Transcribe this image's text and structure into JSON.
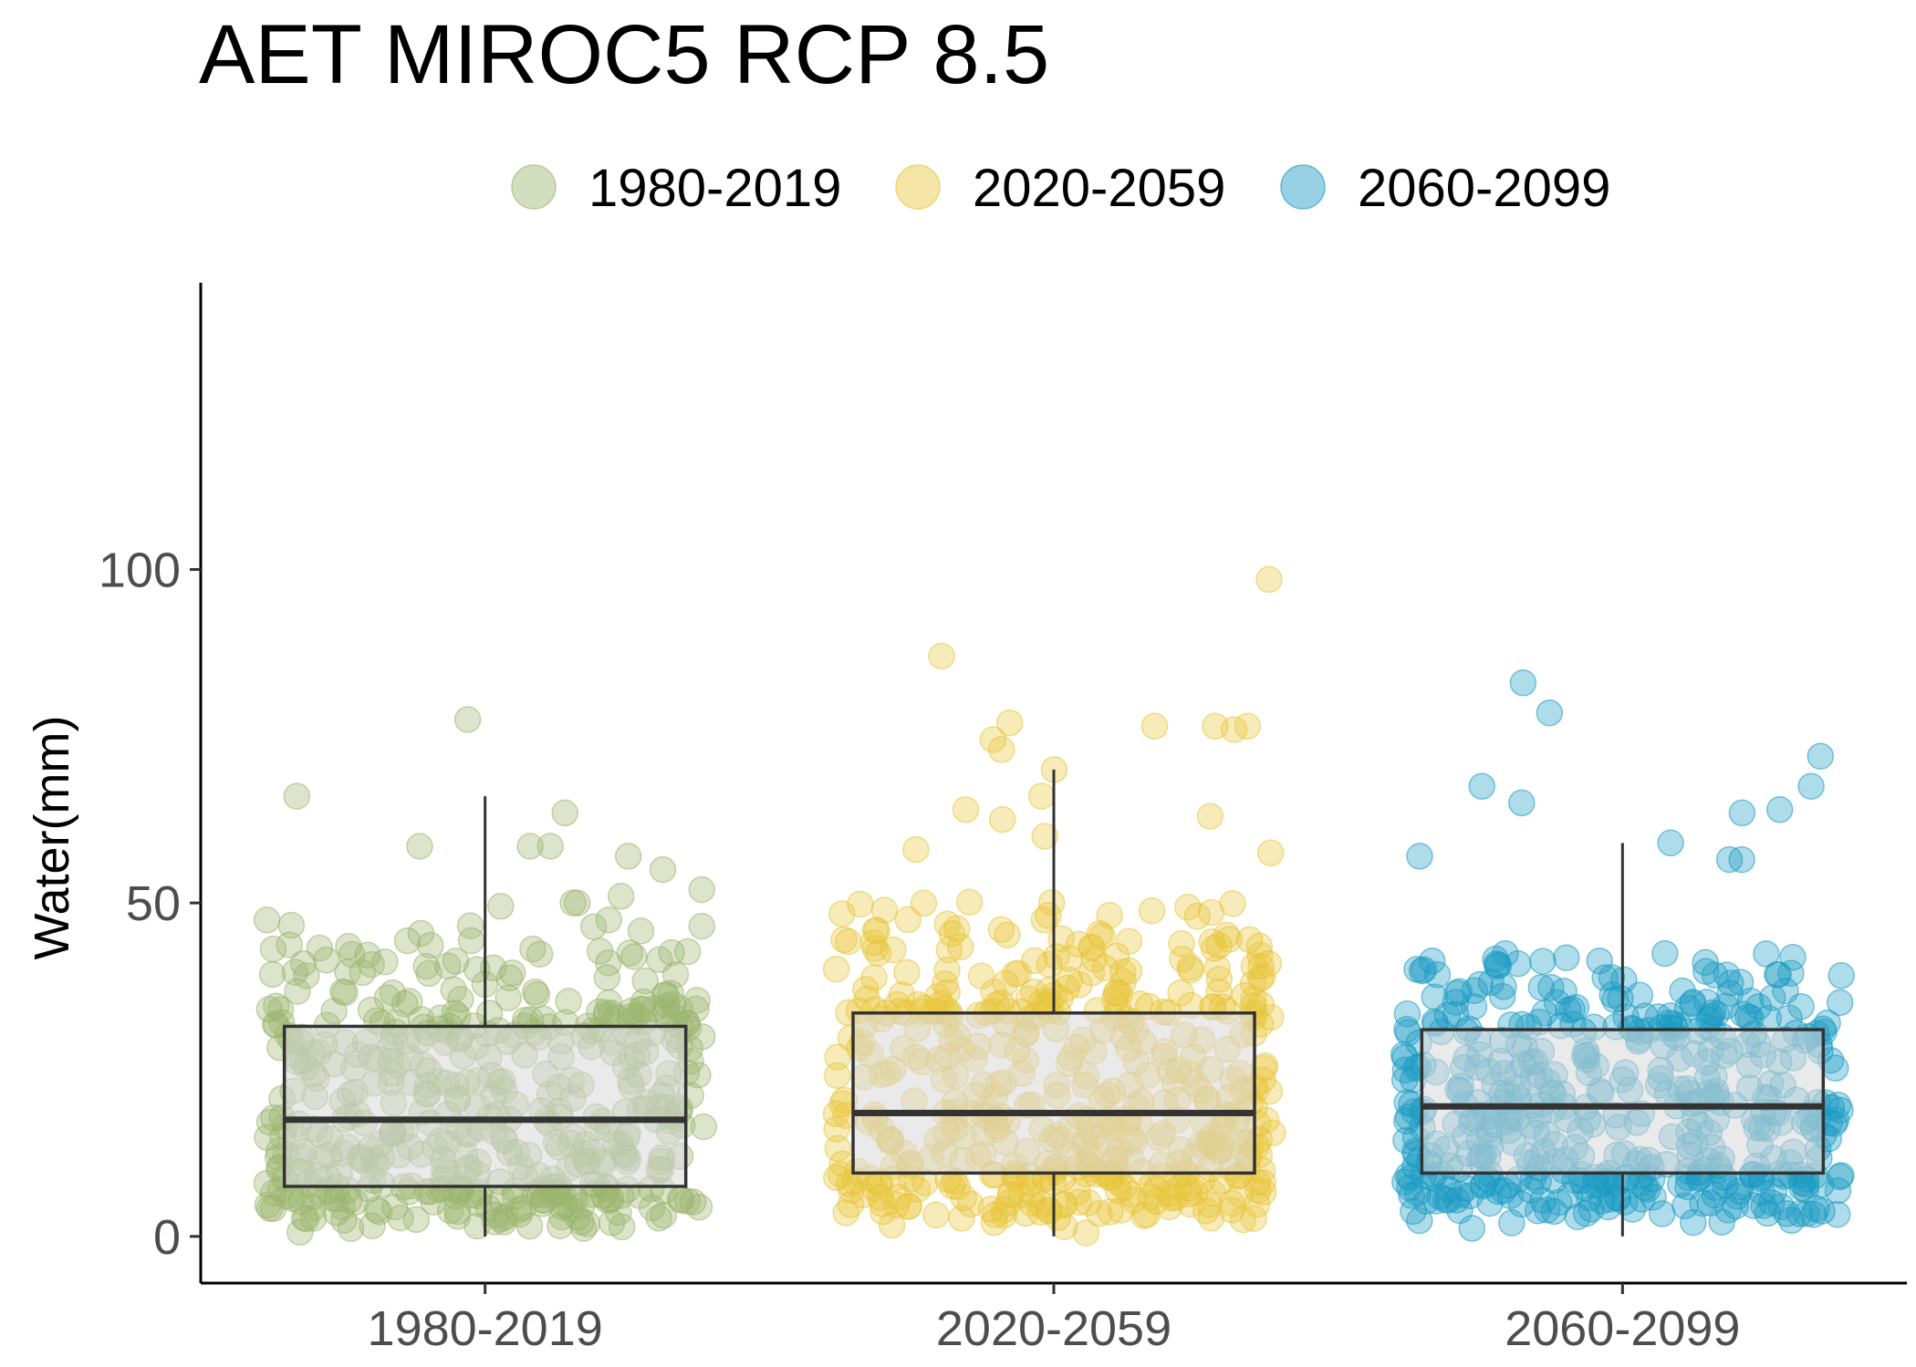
{
  "chart_data": {
    "type": "box",
    "title": "AET MIROC5 RCP 8.5",
    "xlabel": "",
    "ylabel": "Water(mm)",
    "ylim": [
      -7,
      143
    ],
    "yticks": [
      0,
      50,
      100
    ],
    "categories": [
      "1980-2019",
      "2020-2059",
      "2060-2099"
    ],
    "legend": {
      "position": "top"
    },
    "grid": false,
    "series": [
      {
        "name": "1980-2019",
        "color": "#9bb56e",
        "box": {
          "min": 0,
          "q1": 7.5,
          "median": 17.5,
          "q3": 31.5,
          "max": 66
        },
        "points_count_approx": 480,
        "notable_points": [
          77.5,
          66,
          63.5,
          58.5,
          58.5,
          58.5,
          57,
          55,
          52,
          51,
          50,
          50,
          49.5
        ]
      },
      {
        "name": "2020-2059",
        "color": "#e8c53a",
        "box": {
          "min": 0,
          "q1": 9.5,
          "median": 18.5,
          "q3": 33.5,
          "max": 70
        },
        "points_count_approx": 480,
        "notable_points": [
          98.5,
          87,
          77,
          76.5,
          76.5,
          76.5,
          76,
          74.5,
          73,
          70,
          66,
          64,
          63,
          62.5,
          60,
          58,
          57.5
        ]
      },
      {
        "name": "2060-2099",
        "color": "#1a9ac4",
        "box": {
          "min": 0,
          "q1": 9.5,
          "median": 19.5,
          "q3": 31,
          "max": 59
        },
        "points_count_approx": 480,
        "notable_points": [
          83,
          78.5,
          72,
          67.5,
          67.5,
          65,
          64,
          63.5,
          59,
          57,
          56.5,
          56.5
        ]
      }
    ]
  }
}
